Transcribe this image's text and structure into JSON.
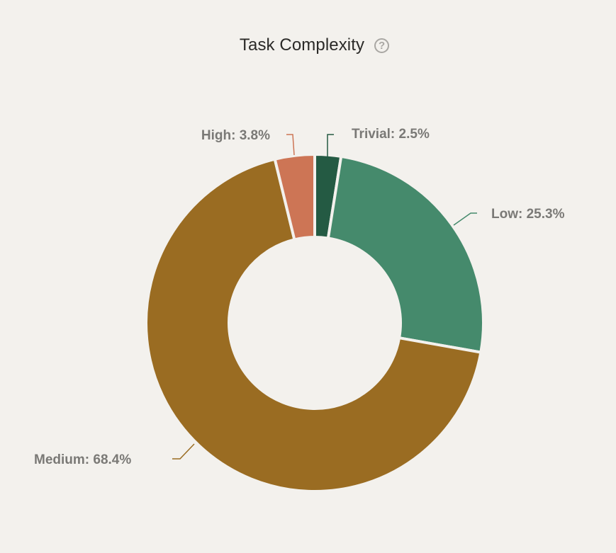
{
  "header": {
    "title": "Task Complexity",
    "help_icon": "question-circle-icon"
  },
  "chart_data": {
    "type": "pie",
    "variant": "donut",
    "title": "Task Complexity",
    "categories": [
      "Trivial",
      "Low",
      "Medium",
      "High"
    ],
    "values": [
      2.5,
      25.3,
      68.4,
      3.8
    ],
    "unit": "%",
    "colors": {
      "Trivial": "#245a43",
      "Low": "#458a6c",
      "Medium": "#9a6c22",
      "High": "#cd7555"
    },
    "labels": [
      "Trivial: 2.5%",
      "Low: 25.3%",
      "Medium: 68.4%",
      "High: 3.8%"
    ],
    "start_angle_deg": 0,
    "direction": "clockwise",
    "legend": "none (outside labels with leader lines)"
  },
  "labels": {
    "trivial": "Trivial: 2.5%",
    "low": "Low: 25.3%",
    "medium": "Medium: 68.4%",
    "high": "High: 3.8%"
  }
}
